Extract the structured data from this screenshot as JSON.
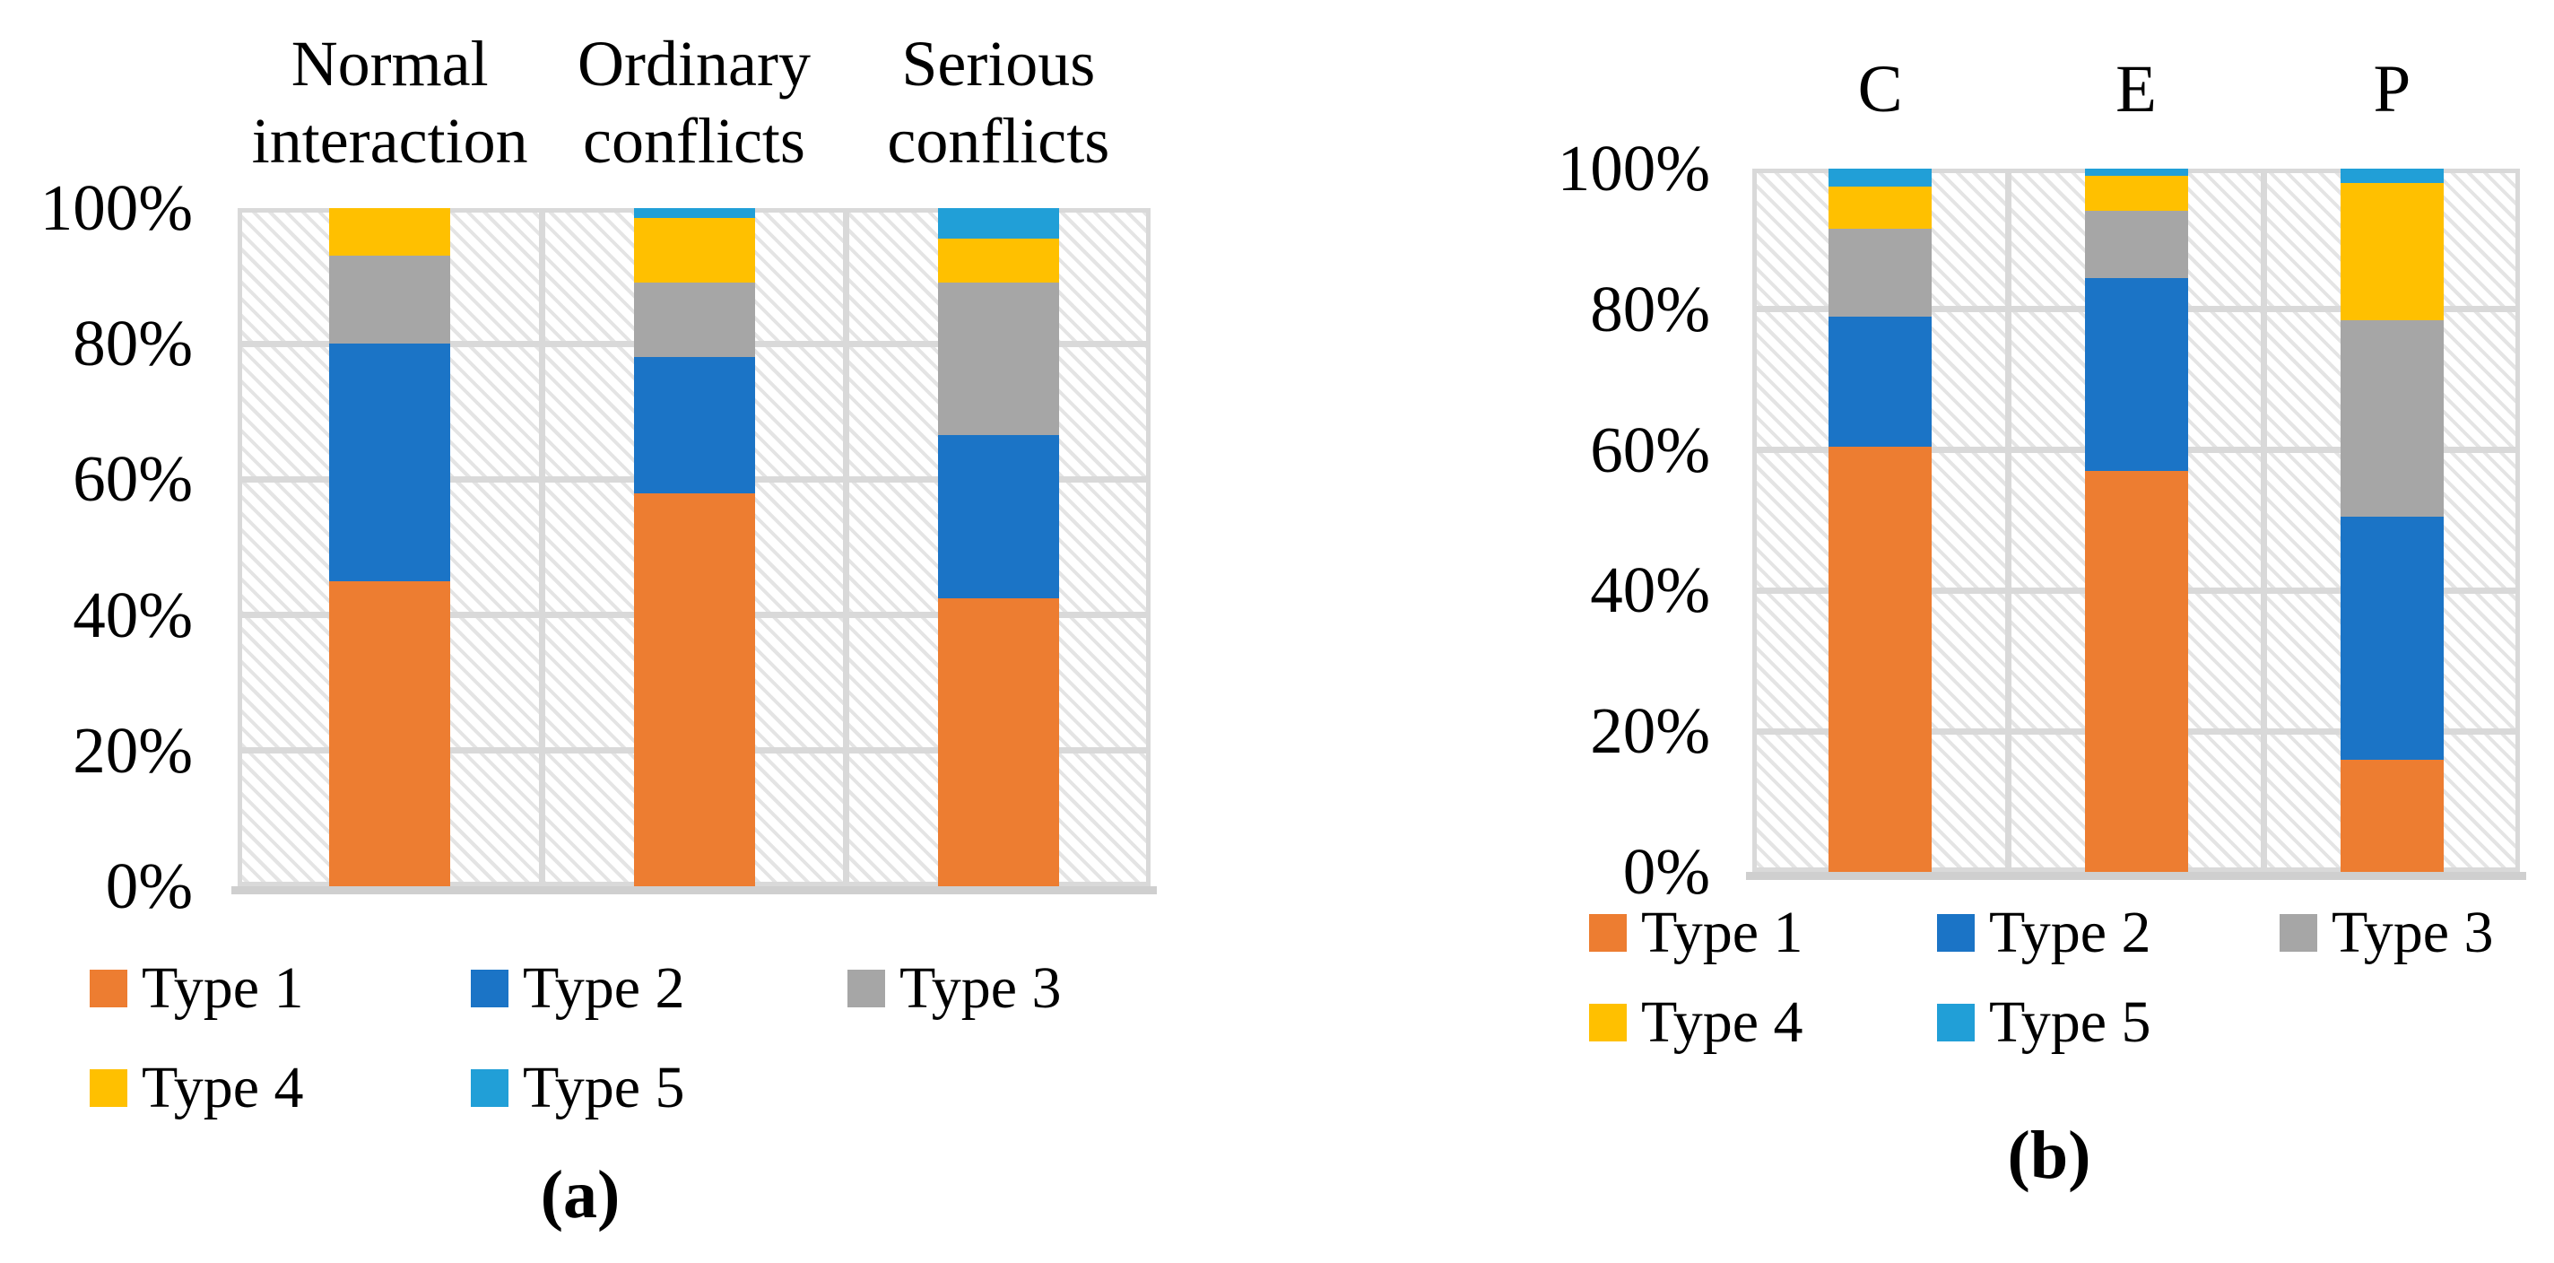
{
  "chart_data": [
    {
      "id": "a",
      "type": "bar",
      "subtype": "stacked-100-percent",
      "caption": "(a)",
      "categories": [
        "Normal interaction",
        "Ordinary conflicts",
        "Serious conflicts"
      ],
      "series": [
        {
          "name": "Type 1",
          "color": "#ED7D31",
          "values": [
            45,
            58,
            42.5
          ]
        },
        {
          "name": "Type 2",
          "color": "#1B74C6",
          "values": [
            35,
            20,
            24
          ]
        },
        {
          "name": "Type 3",
          "color": "#A6A6A6",
          "values": [
            13,
            11,
            22.5
          ]
        },
        {
          "name": "Type 4",
          "color": "#FFC000",
          "values": [
            7,
            9.5,
            6.5
          ]
        },
        {
          "name": "Type 5",
          "color": "#219FD7",
          "values": [
            0,
            1.5,
            4.5
          ]
        }
      ],
      "yticks": [
        "100%",
        "80%",
        "60%",
        "40%",
        "20%",
        "0%"
      ],
      "ylim": [
        0,
        100
      ],
      "grid": true,
      "legend_position": "bottom",
      "legend_rows": [
        [
          "Type 1",
          "Type 2",
          "Type 3"
        ],
        [
          "Type 4",
          "Type 5"
        ]
      ]
    },
    {
      "id": "b",
      "type": "bar",
      "subtype": "stacked-100-percent",
      "caption": "(b)",
      "categories": [
        "C",
        "E",
        "P"
      ],
      "series": [
        {
          "name": "Type 1",
          "color": "#ED7D31",
          "values": [
            60.5,
            57,
            16
          ]
        },
        {
          "name": "Type 2",
          "color": "#1B74C6",
          "values": [
            18.5,
            27.5,
            34.5
          ]
        },
        {
          "name": "Type 3",
          "color": "#A6A6A6",
          "values": [
            12.5,
            9.5,
            28
          ]
        },
        {
          "name": "Type 4",
          "color": "#FFC000",
          "values": [
            6,
            5,
            19.5
          ]
        },
        {
          "name": "Type 5",
          "color": "#219FD7",
          "values": [
            2.5,
            1,
            2
          ]
        }
      ],
      "yticks": [
        "100%",
        "80%",
        "60%",
        "40%",
        "20%",
        "0%"
      ],
      "ylim": [
        0,
        100
      ],
      "grid": true,
      "legend_position": "bottom",
      "legend_rows": [
        [
          "Type 1",
          "Type 2",
          "Type 3"
        ],
        [
          "Type 4",
          "Type 5"
        ]
      ]
    }
  ]
}
